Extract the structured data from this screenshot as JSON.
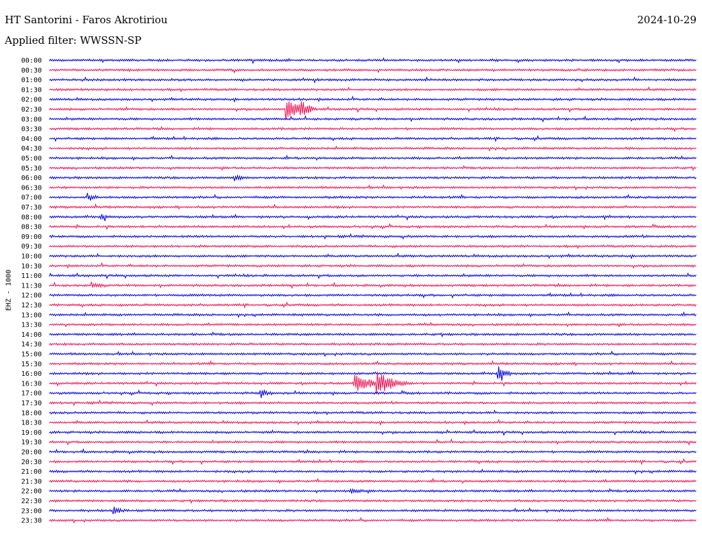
{
  "header": {
    "station": "HT Santorini - Faros Akrotiriou",
    "date": "2024-10-29",
    "filter": "Applied filter: WWSSN-SP"
  },
  "channel_label": "EHZ - 1000",
  "colors": {
    "even_row": "#0000dd",
    "odd_row": "#ee1155"
  },
  "chart_data": {
    "type": "line",
    "title": "HT Santorini - Faros Akrotiriou",
    "rows": [
      "00:00",
      "00:30",
      "01:00",
      "01:30",
      "02:00",
      "02:30",
      "03:00",
      "03:30",
      "04:00",
      "04:30",
      "05:00",
      "05:30",
      "06:00",
      "06:30",
      "07:00",
      "07:30",
      "08:00",
      "08:30",
      "09:00",
      "09:30",
      "10:00",
      "10:30",
      "11:00",
      "11:30",
      "12:00",
      "12:30",
      "13:00",
      "13:30",
      "14:00",
      "14:30",
      "15:00",
      "15:30",
      "16:00",
      "16:30",
      "17:00",
      "17:30",
      "18:00",
      "18:30",
      "19:00",
      "19:30",
      "20:00",
      "20:30",
      "21:00",
      "21:30",
      "22:00",
      "22:30",
      "23:00",
      "23:30"
    ],
    "row_duration_minutes": 30,
    "events": [
      {
        "row": "02:30",
        "minute": 11.0,
        "amplitude": 0.9,
        "duration_minutes": 1.2
      },
      {
        "row": "02:30",
        "minute": 11.6,
        "amplitude": 0.6,
        "duration_minutes": 0.8
      },
      {
        "row": "16:00",
        "minute": 20.8,
        "amplitude": 0.8,
        "duration_minutes": 0.6
      },
      {
        "row": "16:30",
        "minute": 14.2,
        "amplitude": 0.7,
        "duration_minutes": 1.8
      },
      {
        "row": "16:30",
        "minute": 15.2,
        "amplitude": 0.9,
        "duration_minutes": 1.5
      },
      {
        "row": "17:00",
        "minute": 9.8,
        "amplitude": 0.4,
        "duration_minutes": 0.5
      },
      {
        "row": "23:00",
        "minute": 3.0,
        "amplitude": 0.3,
        "duration_minutes": 0.5
      },
      {
        "row": "06:00",
        "minute": 8.6,
        "amplitude": 0.25,
        "duration_minutes": 0.6
      },
      {
        "row": "07:00",
        "minute": 1.8,
        "amplitude": 0.3,
        "duration_minutes": 0.5
      },
      {
        "row": "08:00",
        "minute": 2.4,
        "amplitude": 0.25,
        "duration_minutes": 0.5
      },
      {
        "row": "11:30",
        "minute": 2.0,
        "amplitude": 0.25,
        "duration_minutes": 0.6
      },
      {
        "row": "22:00",
        "minute": 14.0,
        "amplitude": 0.25,
        "duration_minutes": 0.6
      }
    ]
  }
}
